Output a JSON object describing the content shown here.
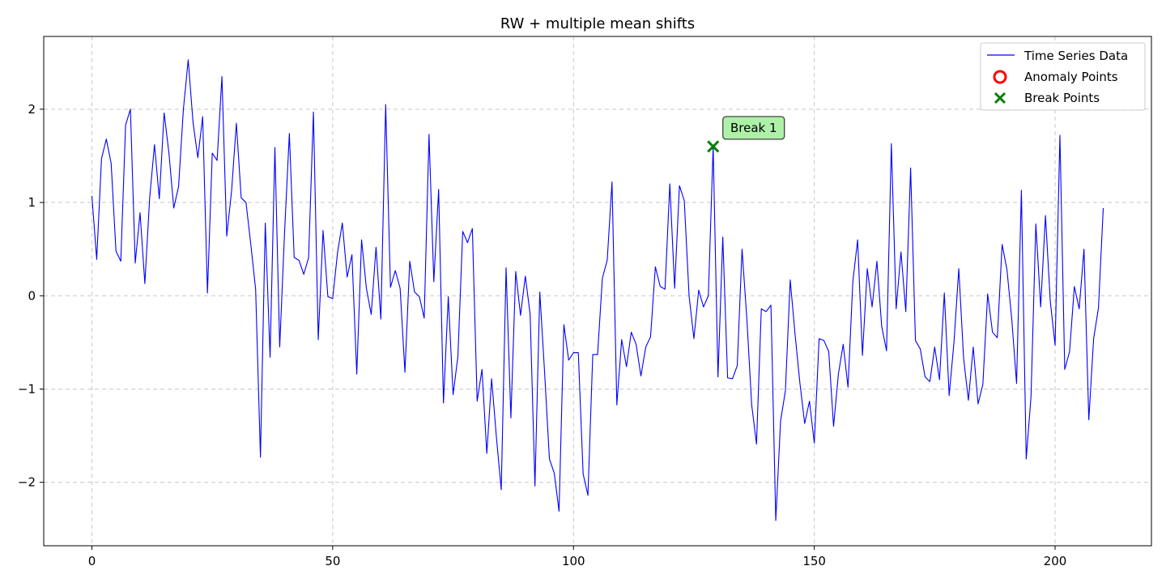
{
  "chart_data": {
    "type": "line",
    "title": "RW + multiple mean shifts",
    "xlabel": "",
    "ylabel": "",
    "xlim": [
      -10,
      220
    ],
    "ylim": [
      -2.68,
      2.78
    ],
    "xticks": [
      0,
      50,
      100,
      150,
      200
    ],
    "yticks": [
      -2,
      -1,
      0,
      1,
      2
    ],
    "grid": true,
    "legend_position": "top-right",
    "series": [
      {
        "name": "Time Series Data",
        "color": "#0000ff",
        "x_start": 0,
        "values": [
          1.07,
          0.39,
          1.47,
          1.68,
          1.42,
          0.48,
          0.37,
          1.83,
          2.0,
          0.35,
          0.89,
          0.13,
          1.05,
          1.62,
          1.04,
          1.96,
          1.53,
          0.94,
          1.17,
          2.0,
          2.53,
          1.86,
          1.48,
          1.92,
          0.03,
          1.53,
          1.45,
          2.35,
          0.64,
          1.12,
          1.85,
          1.05,
          1.0,
          0.55,
          0.07,
          -1.73,
          0.78,
          -0.66,
          1.59,
          -0.55,
          0.67,
          1.74,
          0.41,
          0.38,
          0.23,
          0.41,
          1.97,
          -0.47,
          0.7,
          -0.01,
          -0.03,
          0.46,
          0.78,
          0.2,
          0.44,
          -0.84,
          0.6,
          0.08,
          -0.2,
          0.52,
          -0.25,
          2.05,
          0.09,
          0.27,
          0.08,
          -0.82,
          0.37,
          0.04,
          -0.01,
          -0.24,
          1.73,
          0.15,
          1.14,
          -1.15,
          -0.01,
          -1.06,
          -0.65,
          0.69,
          0.57,
          0.72,
          -1.13,
          -0.79,
          -1.69,
          -0.89,
          -1.52,
          -2.08,
          0.3,
          -1.31,
          0.26,
          -0.21,
          0.21,
          -0.2,
          -2.04,
          0.04,
          -0.82,
          -1.75,
          -1.9,
          -2.31,
          -0.31,
          -0.69,
          -0.61,
          -0.61,
          -1.91,
          -2.14,
          -0.63,
          -0.63,
          0.19,
          0.38,
          1.22,
          -1.17,
          -0.47,
          -0.76,
          -0.39,
          -0.52,
          -0.86,
          -0.55,
          -0.44,
          0.31,
          0.1,
          0.07,
          1.2,
          0.08,
          1.18,
          1.02,
          0.0,
          -0.46,
          0.06,
          -0.12,
          0.0,
          1.6,
          -0.87,
          0.63,
          -0.88,
          -0.89,
          -0.75,
          0.5,
          -0.25,
          -1.17,
          -1.59,
          -0.14,
          -0.17,
          -0.1,
          -2.41,
          -1.34,
          -1.02,
          0.17,
          -0.41,
          -0.93,
          -1.37,
          -1.13,
          -1.58,
          -0.46,
          -0.48,
          -0.6,
          -1.4,
          -0.84,
          -0.52,
          -0.98,
          0.15,
          0.6,
          -0.64,
          0.29,
          -0.12,
          0.37,
          -0.33,
          -0.59,
          1.63,
          -0.14,
          0.47,
          -0.17,
          1.37,
          -0.48,
          -0.57,
          -0.87,
          -0.92,
          -0.55,
          -0.9,
          0.03,
          -1.07,
          -0.5,
          0.29,
          -0.67,
          -1.12,
          -0.55,
          -1.16,
          -0.95,
          0.02,
          -0.39,
          -0.45,
          0.55,
          0.28,
          -0.25,
          -0.94,
          1.13,
          -1.75,
          -1.08,
          0.77,
          -0.12,
          0.86,
          -0.06,
          -0.53,
          1.72,
          -0.79,
          -0.6,
          0.1,
          -0.14,
          0.5,
          -1.33,
          -0.46,
          -0.13,
          0.94
        ]
      }
    ],
    "anomaly_points": {
      "name": "Anomaly Points",
      "color": "#ff0000",
      "points": []
    },
    "break_points": {
      "name": "Break Points",
      "color": "#008000",
      "points": [
        {
          "x": 129,
          "y": 1.6,
          "label": "Break 1"
        }
      ]
    },
    "annotation_style": {
      "fill": "#aef0a8",
      "stroke": "#333333"
    }
  }
}
